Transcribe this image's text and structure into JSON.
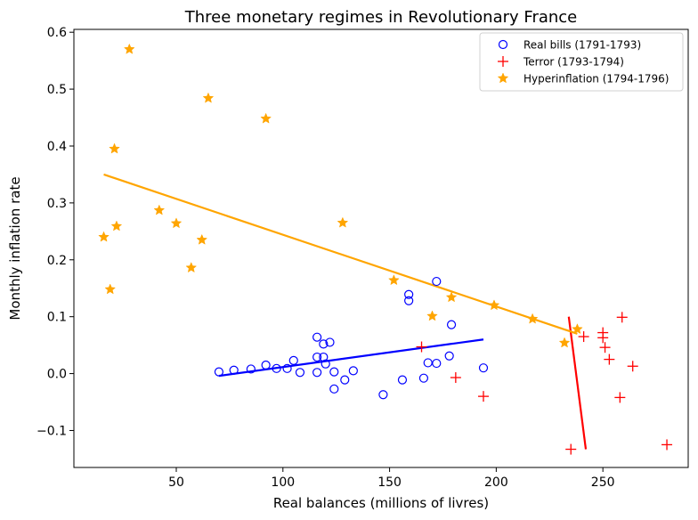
{
  "chart_data": {
    "type": "scatter",
    "title": "Three monetary regimes in Revolutionary France",
    "xlabel": "Real balances (millions of livres)",
    "ylabel": "Monthly inflation rate",
    "xlim": [
      2,
      290
    ],
    "ylim": [
      -0.165,
      0.605
    ],
    "xticks": [
      50,
      100,
      150,
      200,
      250
    ],
    "yticks": [
      -0.1,
      0.0,
      0.1,
      0.2,
      0.3,
      0.4,
      0.5,
      0.6
    ],
    "xtick_labels": [
      "50",
      "100",
      "150",
      "200",
      "250"
    ],
    "ytick_labels": [
      "−0.1",
      "0.0",
      "0.1",
      "0.2",
      "0.3",
      "0.4",
      "0.5",
      "0.6"
    ],
    "grid": false,
    "legend_position": "top-right",
    "series": [
      {
        "name": "Real bills (1791-1793)",
        "marker": "open-circle",
        "color": "#0000ff",
        "points": [
          [
            70,
            0.003
          ],
          [
            77,
            0.006
          ],
          [
            85,
            0.008
          ],
          [
            92,
            0.015
          ],
          [
            97,
            0.009
          ],
          [
            102,
            0.009
          ],
          [
            105,
            0.023
          ],
          [
            108,
            0.002
          ],
          [
            116,
            0.064
          ],
          [
            116,
            0.029
          ],
          [
            116,
            0.002
          ],
          [
            119,
            0.052
          ],
          [
            119,
            0.029
          ],
          [
            120,
            0.017
          ],
          [
            122,
            0.055
          ],
          [
            124,
            -0.027
          ],
          [
            124,
            0.003
          ],
          [
            129,
            -0.011
          ],
          [
            133,
            0.005
          ],
          [
            147,
            -0.037
          ],
          [
            156,
            -0.011
          ],
          [
            159,
            0.139
          ],
          [
            159,
            0.128
          ],
          [
            166,
            -0.008
          ],
          [
            168,
            0.019
          ],
          [
            172,
            0.162
          ],
          [
            172,
            0.018
          ],
          [
            178,
            0.031
          ],
          [
            179,
            0.086
          ],
          [
            194,
            0.01
          ]
        ],
        "fit": [
          [
            70,
            -0.004
          ],
          [
            194,
            0.06
          ]
        ]
      },
      {
        "name": "Terror (1793-1794)",
        "marker": "plus",
        "color": "#ff0000",
        "points": [
          [
            165,
            0.047
          ],
          [
            181,
            -0.007
          ],
          [
            194,
            -0.04
          ],
          [
            235,
            -0.133
          ],
          [
            241,
            0.065
          ],
          [
            250,
            0.072
          ],
          [
            250,
            0.063
          ],
          [
            251,
            0.046
          ],
          [
            253,
            0.025
          ],
          [
            258,
            -0.042
          ],
          [
            259,
            0.099
          ],
          [
            264,
            0.013
          ],
          [
            280,
            -0.125
          ]
        ],
        "fit": [
          [
            234,
            0.1
          ],
          [
            242,
            -0.133
          ]
        ]
      },
      {
        "name": "Hyperinflation (1794-1796)",
        "marker": "star",
        "color": "#ffa500",
        "points": [
          [
            16,
            0.24
          ],
          [
            19,
            0.148
          ],
          [
            21,
            0.395
          ],
          [
            22,
            0.259
          ],
          [
            28,
            0.57
          ],
          [
            42,
            0.287
          ],
          [
            50,
            0.264
          ],
          [
            57,
            0.186
          ],
          [
            62,
            0.235
          ],
          [
            65,
            0.484
          ],
          [
            92,
            0.448
          ],
          [
            128,
            0.265
          ],
          [
            152,
            0.164
          ],
          [
            170,
            0.101
          ],
          [
            179,
            0.134
          ],
          [
            199,
            0.12
          ],
          [
            217,
            0.096
          ],
          [
            232,
            0.054
          ],
          [
            238,
            0.078
          ]
        ],
        "fit": [
          [
            16,
            0.35
          ],
          [
            238,
            0.07
          ]
        ]
      }
    ]
  }
}
